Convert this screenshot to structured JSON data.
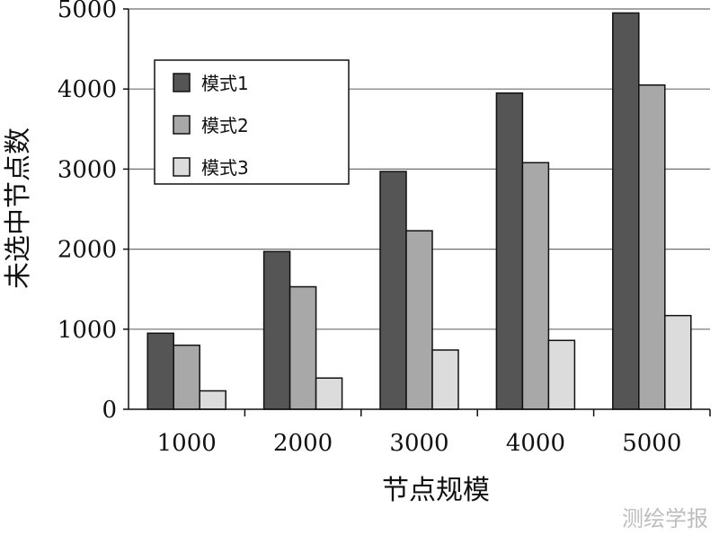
{
  "chart_data": {
    "type": "bar",
    "categories": [
      "1000",
      "2000",
      "3000",
      "4000",
      "5000"
    ],
    "series": [
      {
        "name": "模式1",
        "color": "#555555",
        "values": [
          950,
          1970,
          2970,
          3950,
          4950
        ]
      },
      {
        "name": "模式2",
        "color": "#a8a8a8",
        "values": [
          800,
          1530,
          2230,
          3080,
          4050
        ]
      },
      {
        "name": "模式3",
        "color": "#dcdcdc",
        "values": [
          230,
          390,
          740,
          860,
          1170
        ]
      }
    ],
    "xlabel": "节点规模",
    "ylabel": "未选中节点数",
    "ylim": [
      0,
      5000
    ],
    "yticks": [
      0,
      1000,
      2000,
      3000,
      4000,
      5000
    ],
    "grid": "horizontal",
    "legend_position": "top-left"
  },
  "watermark": "测绘学报"
}
